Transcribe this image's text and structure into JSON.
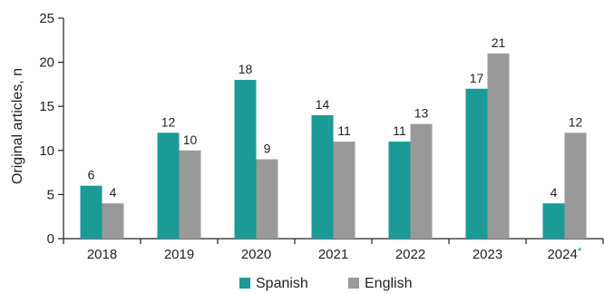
{
  "chart_data": {
    "type": "bar",
    "categories": [
      "2018",
      "2019",
      "2020",
      "2021",
      "2022",
      "2023",
      "2024"
    ],
    "category_footnote_marks": [
      "",
      "",
      "",
      "",
      "",
      "",
      "*"
    ],
    "series": [
      {
        "name": "Spanish",
        "values": [
          6,
          12,
          18,
          14,
          11,
          17,
          4
        ],
        "color": "#1b9a97"
      },
      {
        "name": "English",
        "values": [
          4,
          10,
          9,
          11,
          13,
          21,
          12
        ],
        "color": "#999999"
      }
    ],
    "ylabel": "Original articles, n",
    "xlabel": "",
    "ylim": [
      0,
      25
    ],
    "yticks": [
      0,
      5,
      10,
      15,
      20,
      25
    ],
    "grid": false,
    "legend_position": "bottom-center",
    "footnote_mark_color": "#1b9a97"
  }
}
